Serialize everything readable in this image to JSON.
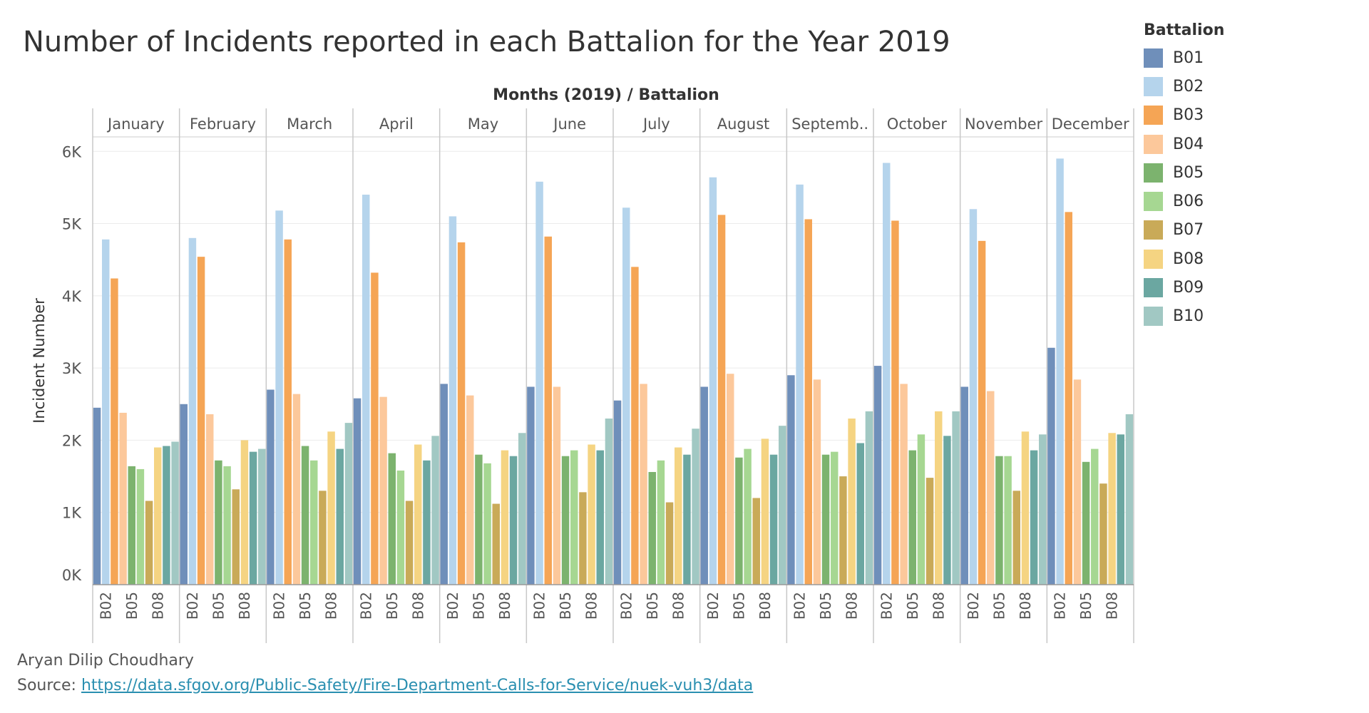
{
  "title": "Number of Incidents reported in each Battalion for the Year 2019",
  "footer": {
    "author": "Aryan Dilip Choudhary",
    "source_label": "Source: ",
    "source_url": "https://data.sfgov.org/Public-Safety/Fire-Department-Calls-for-Service/nuek-vuh3/data"
  },
  "chart_data": {
    "type": "bar",
    "header": "Months (2019)  /  Battalion",
    "ylabel": "Incident Number",
    "ylim": [
      0,
      6200
    ],
    "yticks": [
      0,
      1000,
      2000,
      3000,
      4000,
      5000,
      6000
    ],
    "ytick_labels": [
      "0K",
      "1K",
      "2K",
      "3K",
      "4K",
      "5K",
      "6K"
    ],
    "grid": true,
    "legend_title": "Battalion",
    "legend_position": "right",
    "month_labels": [
      "January",
      "February",
      "March",
      "April",
      "May",
      "June",
      "July",
      "August",
      "Septemb..",
      "October",
      "November",
      "December"
    ],
    "x_tick_labels": [
      "B02",
      "B05",
      "B08"
    ],
    "series": [
      {
        "name": "B01",
        "color": "#6f8fba",
        "values": [
          2450,
          2500,
          2700,
          2580,
          2780,
          2740,
          2550,
          2740,
          2900,
          3030,
          2740,
          3280
        ]
      },
      {
        "name": "B02",
        "color": "#b5d4ec",
        "values": [
          4780,
          4800,
          5180,
          5400,
          5100,
          5580,
          5220,
          5640,
          5540,
          5840,
          5200,
          5900
        ]
      },
      {
        "name": "B03",
        "color": "#f5a555",
        "values": [
          4240,
          4540,
          4780,
          4320,
          4740,
          4820,
          4400,
          5120,
          5060,
          5040,
          4760,
          5160
        ]
      },
      {
        "name": "B04",
        "color": "#fcc89b",
        "values": [
          2380,
          2360,
          2640,
          2600,
          2620,
          2740,
          2780,
          2920,
          2840,
          2780,
          2680,
          2840
        ]
      },
      {
        "name": "B05",
        "color": "#7cb36e",
        "values": [
          1640,
          1720,
          1920,
          1820,
          1800,
          1780,
          1560,
          1760,
          1800,
          1860,
          1780,
          1700
        ]
      },
      {
        "name": "B06",
        "color": "#a6d792",
        "values": [
          1600,
          1640,
          1720,
          1580,
          1680,
          1860,
          1720,
          1880,
          1840,
          2080,
          1780,
          1880
        ]
      },
      {
        "name": "B07",
        "color": "#c9aa58",
        "values": [
          1160,
          1320,
          1300,
          1160,
          1120,
          1280,
          1140,
          1200,
          1500,
          1480,
          1300,
          1400
        ]
      },
      {
        "name": "B08",
        "color": "#f5d482",
        "values": [
          1900,
          2000,
          2120,
          1940,
          1860,
          1940,
          1900,
          2020,
          2300,
          2400,
          2120,
          2100
        ]
      },
      {
        "name": "B09",
        "color": "#6ba7a1",
        "values": [
          1920,
          1840,
          1880,
          1720,
          1780,
          1860,
          1800,
          1800,
          1960,
          2060,
          1860,
          2080
        ]
      },
      {
        "name": "B10",
        "color": "#a1c8c3",
        "values": [
          1980,
          1880,
          2240,
          2060,
          2100,
          2300,
          2160,
          2200,
          2400,
          2400,
          2080,
          2360
        ]
      }
    ]
  }
}
